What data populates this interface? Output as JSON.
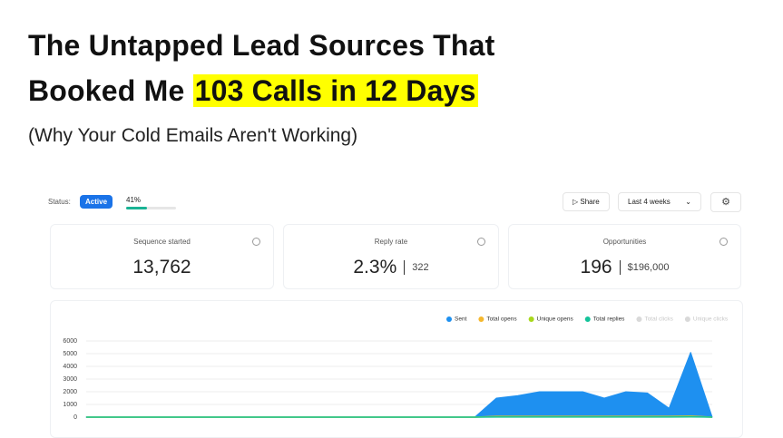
{
  "header": {
    "title_line1": "The Untapped Lead Sources That",
    "title_line2": "Booked Me",
    "highlight": "103 Calls in 12 Days",
    "subtitle": "(Why Your Cold Emails Aren't Working)"
  },
  "toolbar": {
    "status_label": "Status:",
    "status": "Active",
    "progress": {
      "value": 41,
      "label": "41%"
    },
    "share": "Share",
    "range": "Last 4 weeks"
  },
  "cards": [
    {
      "title": "Sequence started",
      "value": "13,762"
    },
    {
      "title": "Reply rate",
      "value": "2.3%",
      "detail": "322"
    },
    {
      "title": "Opportunities",
      "value": "196",
      "detail": "$196,000"
    }
  ],
  "chart_data": {
    "type": "area",
    "categories": [
      null,
      null,
      null,
      null,
      null,
      null,
      null,
      null,
      null,
      null,
      null,
      null,
      null,
      null,
      null,
      null,
      null,
      null,
      null,
      null,
      null,
      null,
      null,
      null,
      null,
      null,
      null,
      null,
      null,
      null
    ],
    "series": [
      {
        "name": "Sent",
        "color": "#1e90f0",
        "visible": true,
        "values": [
          0,
          0,
          0,
          0,
          0,
          0,
          0,
          0,
          0,
          0,
          0,
          0,
          0,
          0,
          0,
          0,
          0,
          0,
          0,
          1500,
          1700,
          2000,
          2000,
          2000,
          1500,
          2000,
          1900,
          700,
          5100,
          0
        ]
      },
      {
        "name": "Total opens",
        "color": "#f5b82e",
        "visible": true,
        "values": [
          0,
          0,
          0,
          0,
          0,
          0,
          0,
          0,
          0,
          0,
          0,
          0,
          0,
          0,
          0,
          0,
          0,
          0,
          0,
          60,
          60,
          60,
          60,
          60,
          60,
          60,
          60,
          60,
          80,
          0
        ]
      },
      {
        "name": "Unique opens",
        "color": "#a8d81c",
        "visible": true,
        "values": [
          0,
          0,
          0,
          0,
          0,
          0,
          0,
          0,
          0,
          0,
          0,
          0,
          0,
          0,
          0,
          0,
          0,
          0,
          0,
          40,
          40,
          40,
          40,
          40,
          40,
          40,
          40,
          40,
          50,
          0
        ]
      },
      {
        "name": "Total replies",
        "color": "#14c39a",
        "visible": true,
        "values": [
          0,
          0,
          0,
          0,
          0,
          0,
          0,
          0,
          0,
          0,
          0,
          0,
          0,
          0,
          0,
          0,
          0,
          0,
          0,
          10,
          10,
          10,
          10,
          10,
          10,
          10,
          10,
          10,
          15,
          0
        ]
      },
      {
        "name": "Total clicks",
        "color": "#d9d9d9",
        "visible": false,
        "values": [
          0,
          0,
          0,
          0,
          0,
          0,
          0,
          0,
          0,
          0,
          0,
          0,
          0,
          0,
          0,
          0,
          0,
          0,
          0,
          0,
          0,
          0,
          0,
          0,
          0,
          0,
          0,
          0,
          0,
          0
        ]
      },
      {
        "name": "Unique clicks",
        "color": "#d9d9d9",
        "visible": false,
        "values": [
          0,
          0,
          0,
          0,
          0,
          0,
          0,
          0,
          0,
          0,
          0,
          0,
          0,
          0,
          0,
          0,
          0,
          0,
          0,
          0,
          0,
          0,
          0,
          0,
          0,
          0,
          0,
          0,
          0,
          0
        ]
      }
    ],
    "ylim": [
      0,
      6000
    ],
    "yticks": [
      0,
      1000,
      2000,
      3000,
      4000,
      5000,
      6000
    ],
    "grid": true
  }
}
